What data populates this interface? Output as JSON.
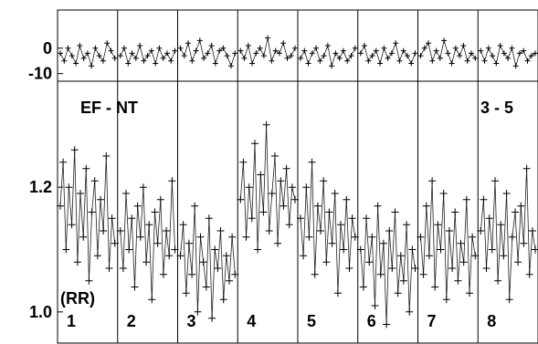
{
  "chart_data": [
    {
      "type": "scatter",
      "panel": "upper",
      "description_marks": "plus markers joined by thin lines, one block per night",
      "ylim": [
        -13,
        15
      ],
      "yticks": [
        {
          "value": 0,
          "label": "0"
        },
        {
          "value": -10,
          "label": "-10"
        }
      ],
      "segments": [
        "1",
        "2",
        "3",
        "4",
        "5",
        "6",
        "7",
        "8"
      ],
      "series": [
        {
          "values": [
            [
              -2,
              -5,
              0,
              -3,
              -6,
              1,
              -4,
              -2,
              -7,
              0,
              -3,
              -5,
              2,
              -1,
              -4
            ],
            [
              -3,
              0,
              -6,
              -2,
              -4,
              1,
              -5,
              -3,
              -1,
              -6,
              0,
              -4,
              -2,
              -5,
              -1
            ],
            [
              0,
              -3,
              2,
              -5,
              -1,
              3,
              -4,
              -2,
              1,
              -6,
              -1,
              0,
              -3,
              -7,
              -2
            ],
            [
              -1,
              -4,
              1,
              -6,
              -2,
              0,
              -3,
              4,
              -5,
              -1,
              -2,
              2,
              -4,
              -3,
              0
            ],
            [
              -4,
              -1,
              -6,
              -2,
              0,
              -5,
              -3,
              1,
              -7,
              -2,
              -4,
              -1,
              -5,
              -3,
              0
            ],
            [
              -2,
              1,
              -5,
              -3,
              -1,
              -6,
              0,
              -4,
              -2,
              2,
              -5,
              -1,
              -3,
              -6,
              -2
            ],
            [
              -3,
              0,
              2,
              -5,
              -1,
              -4,
              3,
              -2,
              -6,
              0,
              -3,
              1,
              -5,
              -2,
              -4
            ],
            [
              -1,
              -5,
              0,
              -3,
              -6,
              1,
              -2,
              -4,
              0,
              -7,
              -2,
              -1,
              -5,
              -3,
              -2
            ]
          ]
        }
      ]
    },
    {
      "type": "scatter",
      "panel": "lower",
      "ylim": [
        0.95,
        1.37
      ],
      "yticks": [
        {
          "value": 1.2,
          "label": "1.2"
        },
        {
          "value": 1.0,
          "label": "1.0"
        }
      ],
      "ylabel": "(RR)",
      "title_left": "EF - NT",
      "title_right": "3 - 5",
      "segments": [
        "1",
        "2",
        "3",
        "4",
        "5",
        "6",
        "7",
        "8"
      ],
      "series": [
        {
          "values": [
            [
              1.17,
              1.24,
              1.1,
              1.2,
              1.14,
              1.26,
              1.08,
              1.19,
              1.12,
              1.23,
              1.05,
              1.16,
              1.21,
              1.09,
              1.18,
              1.13,
              1.25,
              1.07,
              1.15,
              1.11
            ],
            [
              1.13,
              1.07,
              1.19,
              1.1,
              1.15,
              1.04,
              1.17,
              1.12,
              1.2,
              1.08,
              1.14,
              1.02,
              1.16,
              1.11,
              1.18,
              1.06,
              1.13,
              1.09,
              1.21,
              1.1
            ],
            [
              1.09,
              1.14,
              1.03,
              1.11,
              1.06,
              1.17,
              1.0,
              1.12,
              1.08,
              1.04,
              1.15,
              0.99,
              1.1,
              1.07,
              1.13,
              1.02,
              1.09,
              1.05,
              1.12,
              1.06
            ],
            [
              1.18,
              1.24,
              1.12,
              1.2,
              1.15,
              1.27,
              1.1,
              1.22,
              1.16,
              1.3,
              1.13,
              1.19,
              1.25,
              1.11,
              1.21,
              1.17,
              1.23,
              1.14,
              1.2,
              1.18
            ],
            [
              1.15,
              1.09,
              1.2,
              1.12,
              1.24,
              1.06,
              1.17,
              1.13,
              1.21,
              1.08,
              1.16,
              1.11,
              1.19,
              1.03,
              1.14,
              1.1,
              1.18,
              1.07,
              1.15,
              1.12
            ],
            [
              1.1,
              1.04,
              1.15,
              1.08,
              1.12,
              1.01,
              1.17,
              1.06,
              1.11,
              0.98,
              1.13,
              1.07,
              1.16,
              1.03,
              1.09,
              1.05,
              1.14,
              1.0,
              1.1,
              1.07
            ],
            [
              1.12,
              1.06,
              1.17,
              1.09,
              1.21,
              1.04,
              1.14,
              1.1,
              1.19,
              1.02,
              1.13,
              1.07,
              1.16,
              1.05,
              1.11,
              1.08,
              1.18,
              1.03,
              1.12,
              1.09
            ],
            [
              1.13,
              1.18,
              1.07,
              1.15,
              1.1,
              1.21,
              1.05,
              1.14,
              1.09,
              1.19,
              1.02,
              1.12,
              1.16,
              1.08,
              1.17,
              1.11,
              1.23,
              1.06,
              1.13,
              1.1
            ]
          ]
        }
      ]
    }
  ]
}
